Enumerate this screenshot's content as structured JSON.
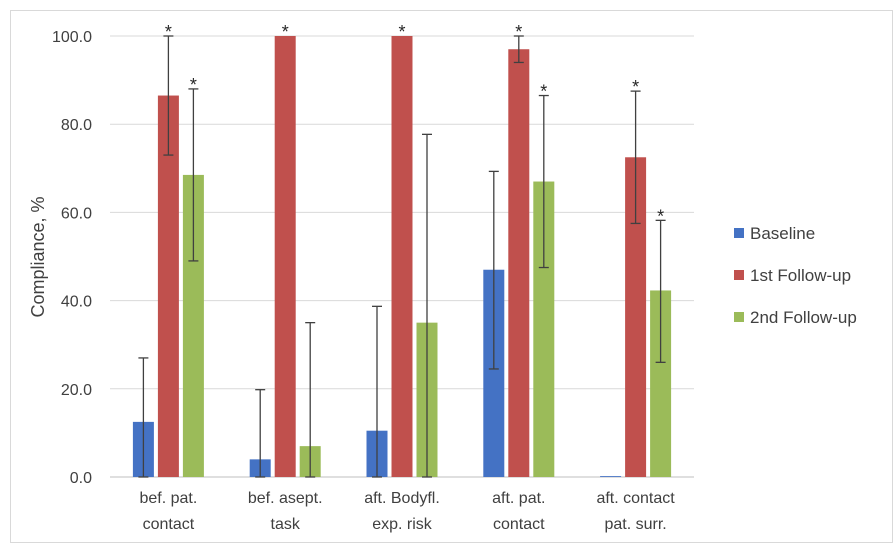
{
  "chart_data": {
    "type": "bar",
    "ylabel": "Compliance, %",
    "ylim": [
      0,
      100
    ],
    "yticks": [
      "0.0",
      "20.0",
      "40.0",
      "60.0",
      "80.0",
      "100.0"
    ],
    "ytick_values": [
      0,
      20,
      40,
      60,
      80,
      100
    ],
    "categories": [
      [
        "bef. pat.",
        "contact"
      ],
      [
        "bef. asept.",
        "task"
      ],
      [
        "aft. Bodyfl.",
        "exp. risk"
      ],
      [
        "aft. pat.",
        "contact"
      ],
      [
        "aft. contact",
        "pat. surr."
      ]
    ],
    "grid": true,
    "legend_position": "right",
    "series": [
      {
        "name": "Baseline",
        "color": "#4472C4",
        "values": [
          12.5,
          4.0,
          10.5,
          47.0,
          0.2
        ],
        "err_low": [
          0,
          0,
          0,
          24.5,
          null
        ],
        "err_high": [
          27.0,
          19.8,
          38.7,
          69.3,
          null
        ],
        "significant": [
          false,
          false,
          false,
          false,
          false
        ]
      },
      {
        "name": "1st Follow-up",
        "color": "#C0504D",
        "values": [
          86.5,
          100.0,
          100.0,
          97.0,
          72.5
        ],
        "err_low": [
          73.0,
          null,
          null,
          94.0,
          57.5
        ],
        "err_high": [
          100.0,
          null,
          null,
          100.0,
          87.5
        ],
        "significant": [
          true,
          true,
          true,
          true,
          true
        ]
      },
      {
        "name": "2nd Follow-up",
        "color": "#9BBB59",
        "values": [
          68.5,
          7.0,
          35.0,
          67.0,
          42.3
        ],
        "err_low": [
          49.0,
          0,
          0,
          47.5,
          26.0
        ],
        "err_high": [
          88.0,
          35.0,
          77.7,
          86.5,
          58.2
        ],
        "significant": [
          true,
          false,
          false,
          true,
          true
        ]
      }
    ],
    "significance_marker": "*"
  }
}
